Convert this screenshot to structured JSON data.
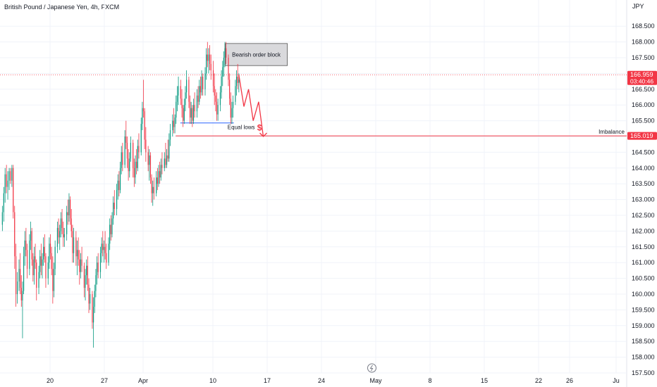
{
  "header": {
    "title": "British Pound / Japanese Yen, 4h, FXCM"
  },
  "axis": {
    "currency": "JPY"
  },
  "colors": {
    "up": "#089981",
    "down": "#f23645",
    "grid": "#f0f3fa",
    "price_line": "#f23645",
    "equal_lows": "#2962ff",
    "block_fill": "#d9d9dc",
    "block_stroke": "#555555"
  },
  "chart_data": {
    "type": "candlestick",
    "ylim": [
      157.5,
      168.7
    ],
    "y_ticks": [
      "157.500",
      "158.000",
      "158.500",
      "159.000",
      "159.500",
      "160.000",
      "160.500",
      "161.000",
      "161.500",
      "162.000",
      "162.500",
      "163.000",
      "163.500",
      "164.000",
      "164.500",
      "165.000",
      "165.500",
      "166.000",
      "166.500",
      "167.000",
      "167.500",
      "168.000",
      "168.500"
    ],
    "x_ticks": [
      {
        "label": "20",
        "d": 20
      },
      {
        "label": "27",
        "d": 27
      },
      {
        "label": "Apr",
        "d": 32
      },
      {
        "label": "10",
        "d": 41
      },
      {
        "label": "17",
        "d": 48
      },
      {
        "label": "24",
        "d": 55
      },
      {
        "label": "May",
        "d": 62
      },
      {
        "label": "8",
        "d": 69
      },
      {
        "label": "15",
        "d": 76
      },
      {
        "label": "22",
        "d": 83
      },
      {
        "label": "26",
        "d": 87
      },
      {
        "label": "Ju",
        "d": 93
      }
    ],
    "xlim": [
      13.8,
      93.4
    ],
    "candles": [
      [
        13.85,
        162.2,
        162.8,
        162.0,
        162.6
      ],
      [
        14.03,
        162.6,
        163.4,
        162.3,
        163.2
      ],
      [
        14.2,
        163.2,
        164.0,
        162.9,
        163.8
      ],
      [
        14.38,
        163.8,
        164.1,
        163.2,
        163.4
      ],
      [
        14.55,
        163.4,
        163.9,
        163.0,
        163.6
      ],
      [
        14.73,
        163.6,
        164.0,
        163.3,
        163.9
      ],
      [
        14.9,
        163.9,
        164.0,
        163.5,
        163.6
      ],
      [
        15.08,
        163.6,
        164.1,
        163.4,
        164.0
      ],
      [
        15.25,
        164.0,
        164.1,
        162.4,
        162.6
      ],
      [
        15.43,
        162.6,
        162.8,
        160.8,
        161.2
      ],
      [
        15.6,
        161.2,
        161.6,
        159.6,
        160.0
      ],
      [
        15.78,
        160.0,
        160.7,
        159.7,
        160.4
      ],
      [
        16.0,
        160.4,
        161.1,
        160.1,
        160.8
      ],
      [
        16.15,
        160.8,
        161.3,
        160.0,
        160.2
      ],
      [
        16.3,
        160.2,
        160.6,
        159.6,
        159.8
      ],
      [
        16.45,
        159.8,
        160.4,
        158.6,
        160.1
      ],
      [
        16.6,
        160.1,
        161.5,
        160.0,
        161.2
      ],
      [
        16.75,
        161.2,
        162.0,
        160.9,
        161.7
      ],
      [
        16.9,
        161.7,
        162.1,
        161.2,
        161.4
      ],
      [
        17.05,
        161.4,
        161.6,
        160.5,
        160.8
      ],
      [
        17.35,
        160.8,
        161.9,
        160.6,
        161.7
      ],
      [
        17.5,
        161.7,
        162.3,
        161.4,
        162.0
      ],
      [
        17.65,
        162.0,
        162.1,
        160.9,
        161.1
      ],
      [
        17.8,
        161.1,
        161.3,
        160.4,
        160.6
      ],
      [
        17.95,
        160.6,
        161.5,
        160.3,
        161.2
      ],
      [
        18.1,
        161.2,
        161.6,
        160.8,
        161.0
      ],
      [
        18.25,
        161.0,
        161.1,
        159.8,
        160.2
      ],
      [
        18.55,
        160.2,
        160.9,
        160.0,
        160.7
      ],
      [
        18.7,
        160.7,
        161.4,
        160.5,
        161.2
      ],
      [
        18.85,
        161.2,
        161.6,
        160.6,
        160.9
      ],
      [
        19.0,
        160.9,
        161.3,
        160.5,
        161.1
      ],
      [
        19.15,
        161.1,
        161.8,
        160.9,
        161.5
      ],
      [
        19.3,
        161.5,
        161.9,
        161.0,
        161.2
      ],
      [
        19.45,
        161.2,
        161.3,
        160.2,
        160.5
      ],
      [
        19.75,
        160.5,
        161.2,
        160.3,
        161.0
      ],
      [
        19.9,
        161.0,
        161.8,
        160.8,
        161.6
      ],
      [
        20.05,
        161.6,
        161.9,
        161.1,
        161.3
      ],
      [
        20.2,
        161.3,
        161.5,
        160.6,
        160.8
      ],
      [
        20.35,
        160.8,
        161.2,
        159.7,
        160.1
      ],
      [
        20.5,
        160.1,
        161.0,
        159.9,
        160.8
      ],
      [
        20.65,
        160.8,
        161.7,
        160.6,
        161.5
      ],
      [
        20.95,
        161.5,
        162.3,
        161.3,
        162.1
      ],
      [
        21.1,
        162.1,
        162.4,
        161.6,
        161.8
      ],
      [
        21.25,
        161.8,
        162.2,
        161.4,
        162.0
      ],
      [
        21.4,
        162.0,
        162.6,
        161.8,
        162.4
      ],
      [
        21.55,
        162.4,
        162.7,
        161.9,
        162.1
      ],
      [
        21.7,
        162.1,
        162.3,
        161.5,
        161.8
      ],
      [
        21.85,
        161.8,
        162.1,
        161.5,
        161.9
      ],
      [
        22.15,
        161.9,
        162.8,
        161.7,
        162.6
      ],
      [
        22.3,
        162.6,
        163.0,
        162.2,
        162.5
      ],
      [
        22.45,
        162.5,
        163.2,
        162.3,
        163.0
      ],
      [
        22.6,
        163.0,
        163.1,
        162.2,
        162.4
      ],
      [
        22.75,
        162.4,
        162.7,
        161.8,
        162.0
      ],
      [
        22.9,
        162.0,
        162.2,
        161.0,
        161.3
      ],
      [
        23.05,
        161.3,
        162.1,
        161.0,
        161.8
      ],
      [
        23.35,
        161.8,
        162.0,
        160.9,
        161.2
      ],
      [
        23.5,
        161.2,
        161.7,
        160.6,
        161.4
      ],
      [
        23.65,
        161.4,
        161.8,
        160.9,
        161.1
      ],
      [
        23.8,
        161.1,
        161.4,
        160.3,
        160.7
      ],
      [
        23.95,
        160.7,
        161.3,
        160.5,
        161.1
      ],
      [
        24.1,
        161.1,
        161.5,
        160.7,
        160.9
      ],
      [
        24.4,
        160.9,
        161.0,
        159.9,
        160.2
      ],
      [
        24.55,
        160.2,
        160.8,
        159.8,
        160.6
      ],
      [
        24.7,
        160.6,
        161.1,
        160.3,
        160.9
      ],
      [
        24.85,
        160.9,
        161.2,
        160.1,
        160.3
      ],
      [
        25.0,
        160.3,
        160.5,
        159.4,
        159.7
      ],
      [
        25.15,
        159.7,
        160.2,
        159.5,
        160.0
      ],
      [
        25.45,
        160.0,
        160.1,
        158.9,
        159.1
      ],
      [
        25.6,
        159.1,
        159.9,
        158.3,
        159.6
      ],
      [
        25.75,
        159.6,
        160.3,
        159.4,
        160.1
      ],
      [
        25.9,
        160.1,
        160.8,
        159.9,
        160.6
      ],
      [
        26.05,
        160.6,
        161.2,
        160.3,
        161.0
      ],
      [
        26.2,
        161.0,
        161.3,
        160.5,
        160.7
      ],
      [
        26.5,
        160.7,
        161.5,
        160.5,
        161.3
      ],
      [
        26.65,
        161.3,
        161.8,
        161.0,
        161.6
      ],
      [
        26.8,
        161.6,
        162.0,
        161.2,
        161.4
      ],
      [
        26.95,
        161.4,
        161.7,
        161.0,
        161.5
      ],
      [
        27.1,
        161.5,
        162.0,
        161.1,
        161.3
      ],
      [
        27.25,
        161.3,
        161.6,
        160.8,
        161.0
      ],
      [
        27.55,
        161.0,
        161.8,
        160.9,
        161.6
      ],
      [
        27.7,
        161.6,
        162.4,
        161.4,
        162.2
      ],
      [
        27.85,
        162.2,
        162.5,
        161.7,
        161.9
      ],
      [
        28.0,
        161.9,
        162.6,
        161.8,
        162.4
      ],
      [
        28.15,
        162.4,
        163.1,
        162.2,
        162.9
      ],
      [
        28.3,
        162.9,
        163.3,
        162.5,
        162.7
      ],
      [
        28.6,
        162.7,
        163.5,
        162.5,
        163.3
      ],
      [
        28.75,
        163.3,
        163.8,
        163.0,
        163.6
      ],
      [
        28.9,
        163.6,
        163.9,
        163.1,
        163.3
      ],
      [
        29.05,
        163.3,
        164.2,
        163.2,
        164.0
      ],
      [
        29.2,
        164.0,
        164.7,
        163.8,
        164.5
      ],
      [
        29.35,
        164.5,
        164.8,
        163.9,
        164.1
      ],
      [
        29.65,
        164.1,
        165.2,
        164.0,
        165.0
      ],
      [
        29.8,
        165.0,
        165.5,
        164.6,
        164.8
      ],
      [
        29.95,
        164.8,
        165.0,
        164.0,
        164.3
      ],
      [
        30.1,
        164.3,
        164.6,
        163.6,
        163.9
      ],
      [
        30.25,
        163.9,
        164.5,
        163.7,
        164.3
      ],
      [
        30.4,
        164.3,
        165.0,
        164.2,
        164.8
      ],
      [
        30.7,
        164.8,
        164.9,
        163.7,
        164.0
      ],
      [
        30.85,
        164.0,
        164.3,
        163.4,
        163.7
      ],
      [
        31.0,
        163.7,
        164.4,
        163.5,
        164.2
      ],
      [
        31.15,
        164.2,
        164.6,
        163.8,
        164.0
      ],
      [
        31.3,
        164.0,
        164.9,
        163.9,
        164.7
      ],
      [
        31.45,
        164.7,
        165.1,
        164.3,
        164.5
      ],
      [
        31.75,
        164.5,
        165.6,
        164.4,
        165.4
      ],
      [
        31.9,
        165.4,
        166.1,
        165.2,
        165.9
      ],
      [
        32.05,
        165.9,
        166.8,
        165.6,
        165.8
      ],
      [
        32.2,
        165.8,
        165.9,
        164.6,
        164.9
      ],
      [
        32.35,
        164.9,
        165.3,
        164.2,
        164.5
      ],
      [
        32.65,
        164.5,
        164.7,
        163.9,
        164.1
      ],
      [
        32.8,
        164.1,
        164.6,
        163.6,
        164.4
      ],
      [
        32.95,
        164.4,
        164.5,
        163.5,
        163.7
      ],
      [
        33.1,
        163.7,
        163.8,
        162.9,
        163.2
      ],
      [
        33.25,
        163.2,
        163.6,
        162.8,
        163.4
      ],
      [
        33.4,
        163.4,
        163.7,
        163.0,
        163.2
      ],
      [
        33.7,
        163.2,
        163.9,
        163.1,
        163.7
      ],
      [
        33.85,
        163.7,
        164.0,
        163.3,
        163.5
      ],
      [
        34.0,
        163.5,
        164.1,
        163.4,
        163.9
      ],
      [
        34.15,
        163.9,
        164.2,
        163.5,
        163.7
      ],
      [
        34.3,
        163.7,
        164.3,
        163.6,
        164.1
      ],
      [
        34.45,
        164.1,
        164.5,
        163.8,
        164.0
      ],
      [
        34.75,
        164.0,
        164.5,
        163.9,
        164.3
      ],
      [
        34.9,
        164.3,
        164.8,
        164.0,
        164.1
      ],
      [
        35.05,
        164.1,
        164.6,
        164.0,
        164.4
      ],
      [
        35.2,
        164.4,
        164.9,
        164.2,
        164.3
      ],
      [
        35.35,
        164.3,
        165.1,
        164.2,
        164.9
      ],
      [
        35.5,
        164.9,
        165.4,
        164.7,
        165.2
      ],
      [
        35.8,
        165.2,
        165.7,
        165.0,
        165.5
      ],
      [
        35.95,
        165.5,
        165.9,
        165.1,
        165.3
      ],
      [
        36.1,
        165.3,
        165.7,
        165.1,
        165.6
      ],
      [
        36.25,
        165.6,
        166.3,
        165.4,
        166.1
      ],
      [
        36.4,
        166.1,
        166.6,
        165.8,
        166.3
      ],
      [
        36.55,
        166.3,
        166.9,
        166.0,
        166.6
      ],
      [
        36.85,
        166.6,
        166.8,
        166.0,
        166.2
      ],
      [
        37.0,
        166.2,
        166.5,
        165.6,
        165.9
      ],
      [
        37.15,
        165.9,
        166.0,
        165.3,
        165.5
      ],
      [
        37.3,
        165.5,
        166.2,
        165.4,
        166.0
      ],
      [
        37.45,
        166.0,
        166.6,
        165.8,
        166.4
      ],
      [
        37.6,
        166.4,
        167.1,
        166.2,
        166.8
      ],
      [
        37.9,
        166.8,
        166.9,
        165.9,
        166.1
      ],
      [
        38.05,
        166.1,
        166.3,
        165.4,
        165.6
      ],
      [
        38.2,
        165.6,
        166.1,
        165.4,
        165.9
      ],
      [
        38.35,
        165.9,
        166.0,
        165.3,
        165.5
      ],
      [
        38.5,
        165.5,
        166.2,
        165.4,
        166.0
      ],
      [
        38.65,
        166.0,
        166.4,
        165.6,
        165.8
      ],
      [
        38.95,
        165.8,
        166.5,
        165.6,
        166.3
      ],
      [
        39.1,
        166.3,
        166.6,
        165.9,
        166.1
      ],
      [
        39.25,
        166.1,
        166.8,
        166.0,
        166.6
      ],
      [
        39.4,
        166.6,
        166.9,
        166.2,
        166.4
      ],
      [
        39.55,
        166.4,
        167.1,
        166.3,
        166.9
      ],
      [
        39.7,
        166.9,
        167.0,
        166.3,
        166.5
      ],
      [
        40.0,
        166.5,
        167.2,
        166.3,
        167.0
      ],
      [
        40.15,
        167.0,
        167.8,
        166.8,
        167.6
      ],
      [
        40.3,
        167.6,
        168.0,
        167.2,
        167.4
      ],
      [
        40.45,
        167.4,
        167.8,
        167.0,
        167.6
      ],
      [
        40.6,
        167.6,
        167.9,
        167.1,
        167.3
      ],
      [
        40.75,
        167.3,
        167.6,
        166.8,
        167.1
      ],
      [
        41.05,
        167.1,
        167.4,
        166.4,
        166.6
      ],
      [
        41.2,
        166.6,
        167.0,
        166.0,
        166.3
      ],
      [
        41.35,
        166.3,
        166.5,
        165.8,
        166.1
      ],
      [
        41.5,
        166.1,
        166.4,
        165.5,
        165.7
      ],
      [
        41.65,
        165.7,
        166.2,
        165.5,
        166.0
      ],
      [
        41.95,
        166.0,
        166.6,
        165.8,
        166.4
      ],
      [
        42.1,
        166.4,
        167.1,
        166.2,
        166.9
      ],
      [
        42.25,
        166.9,
        167.4,
        166.6,
        167.2
      ],
      [
        42.4,
        167.2,
        167.7,
        166.9,
        167.5
      ],
      [
        42.55,
        167.5,
        168.0,
        167.2,
        167.8
      ],
      [
        42.7,
        167.8,
        168.0,
        167.3,
        167.5
      ],
      [
        43.0,
        167.5,
        167.6,
        166.6,
        166.8
      ],
      [
        43.15,
        166.8,
        167.0,
        166.0,
        166.2
      ],
      [
        43.3,
        166.2,
        166.4,
        165.4,
        165.6
      ],
      [
        43.45,
        165.6,
        166.1,
        165.4,
        165.9
      ],
      [
        43.6,
        165.9,
        166.3,
        165.6,
        166.1
      ],
      [
        43.9,
        166.1,
        166.8,
        166.0,
        166.6
      ],
      [
        44.05,
        166.6,
        167.1,
        166.3,
        166.9
      ],
      [
        44.2,
        166.9,
        167.3,
        166.5,
        166.7
      ],
      [
        44.35,
        166.7,
        167.0,
        166.4,
        166.8
      ]
    ],
    "annotations": {
      "bearish_order_block": {
        "label": "Bearish order block",
        "x0": 42.6,
        "x1": 50.6,
        "y0": 167.25,
        "y1": 167.95
      },
      "equal_lows": {
        "label": "Equal lows",
        "symbol": "$",
        "x0": 36.8,
        "x1": 43.7,
        "y": 165.43
      },
      "imbalance": {
        "label": "Imbalance",
        "x0": 36.2,
        "x1": 93.4,
        "y": 165.019
      },
      "projection": [
        [
          44.35,
          166.95
        ],
        [
          45.0,
          165.95
        ],
        [
          45.6,
          166.5
        ],
        [
          46.2,
          165.5
        ],
        [
          46.9,
          166.1
        ],
        [
          47.5,
          165.0
        ]
      ]
    },
    "price_badges": [
      {
        "value": "166.959",
        "sub": "03:40:46",
        "y": 166.959,
        "color": "#f23645"
      },
      {
        "value": "165.019",
        "y": 165.019,
        "color": "#f23645"
      }
    ]
  }
}
